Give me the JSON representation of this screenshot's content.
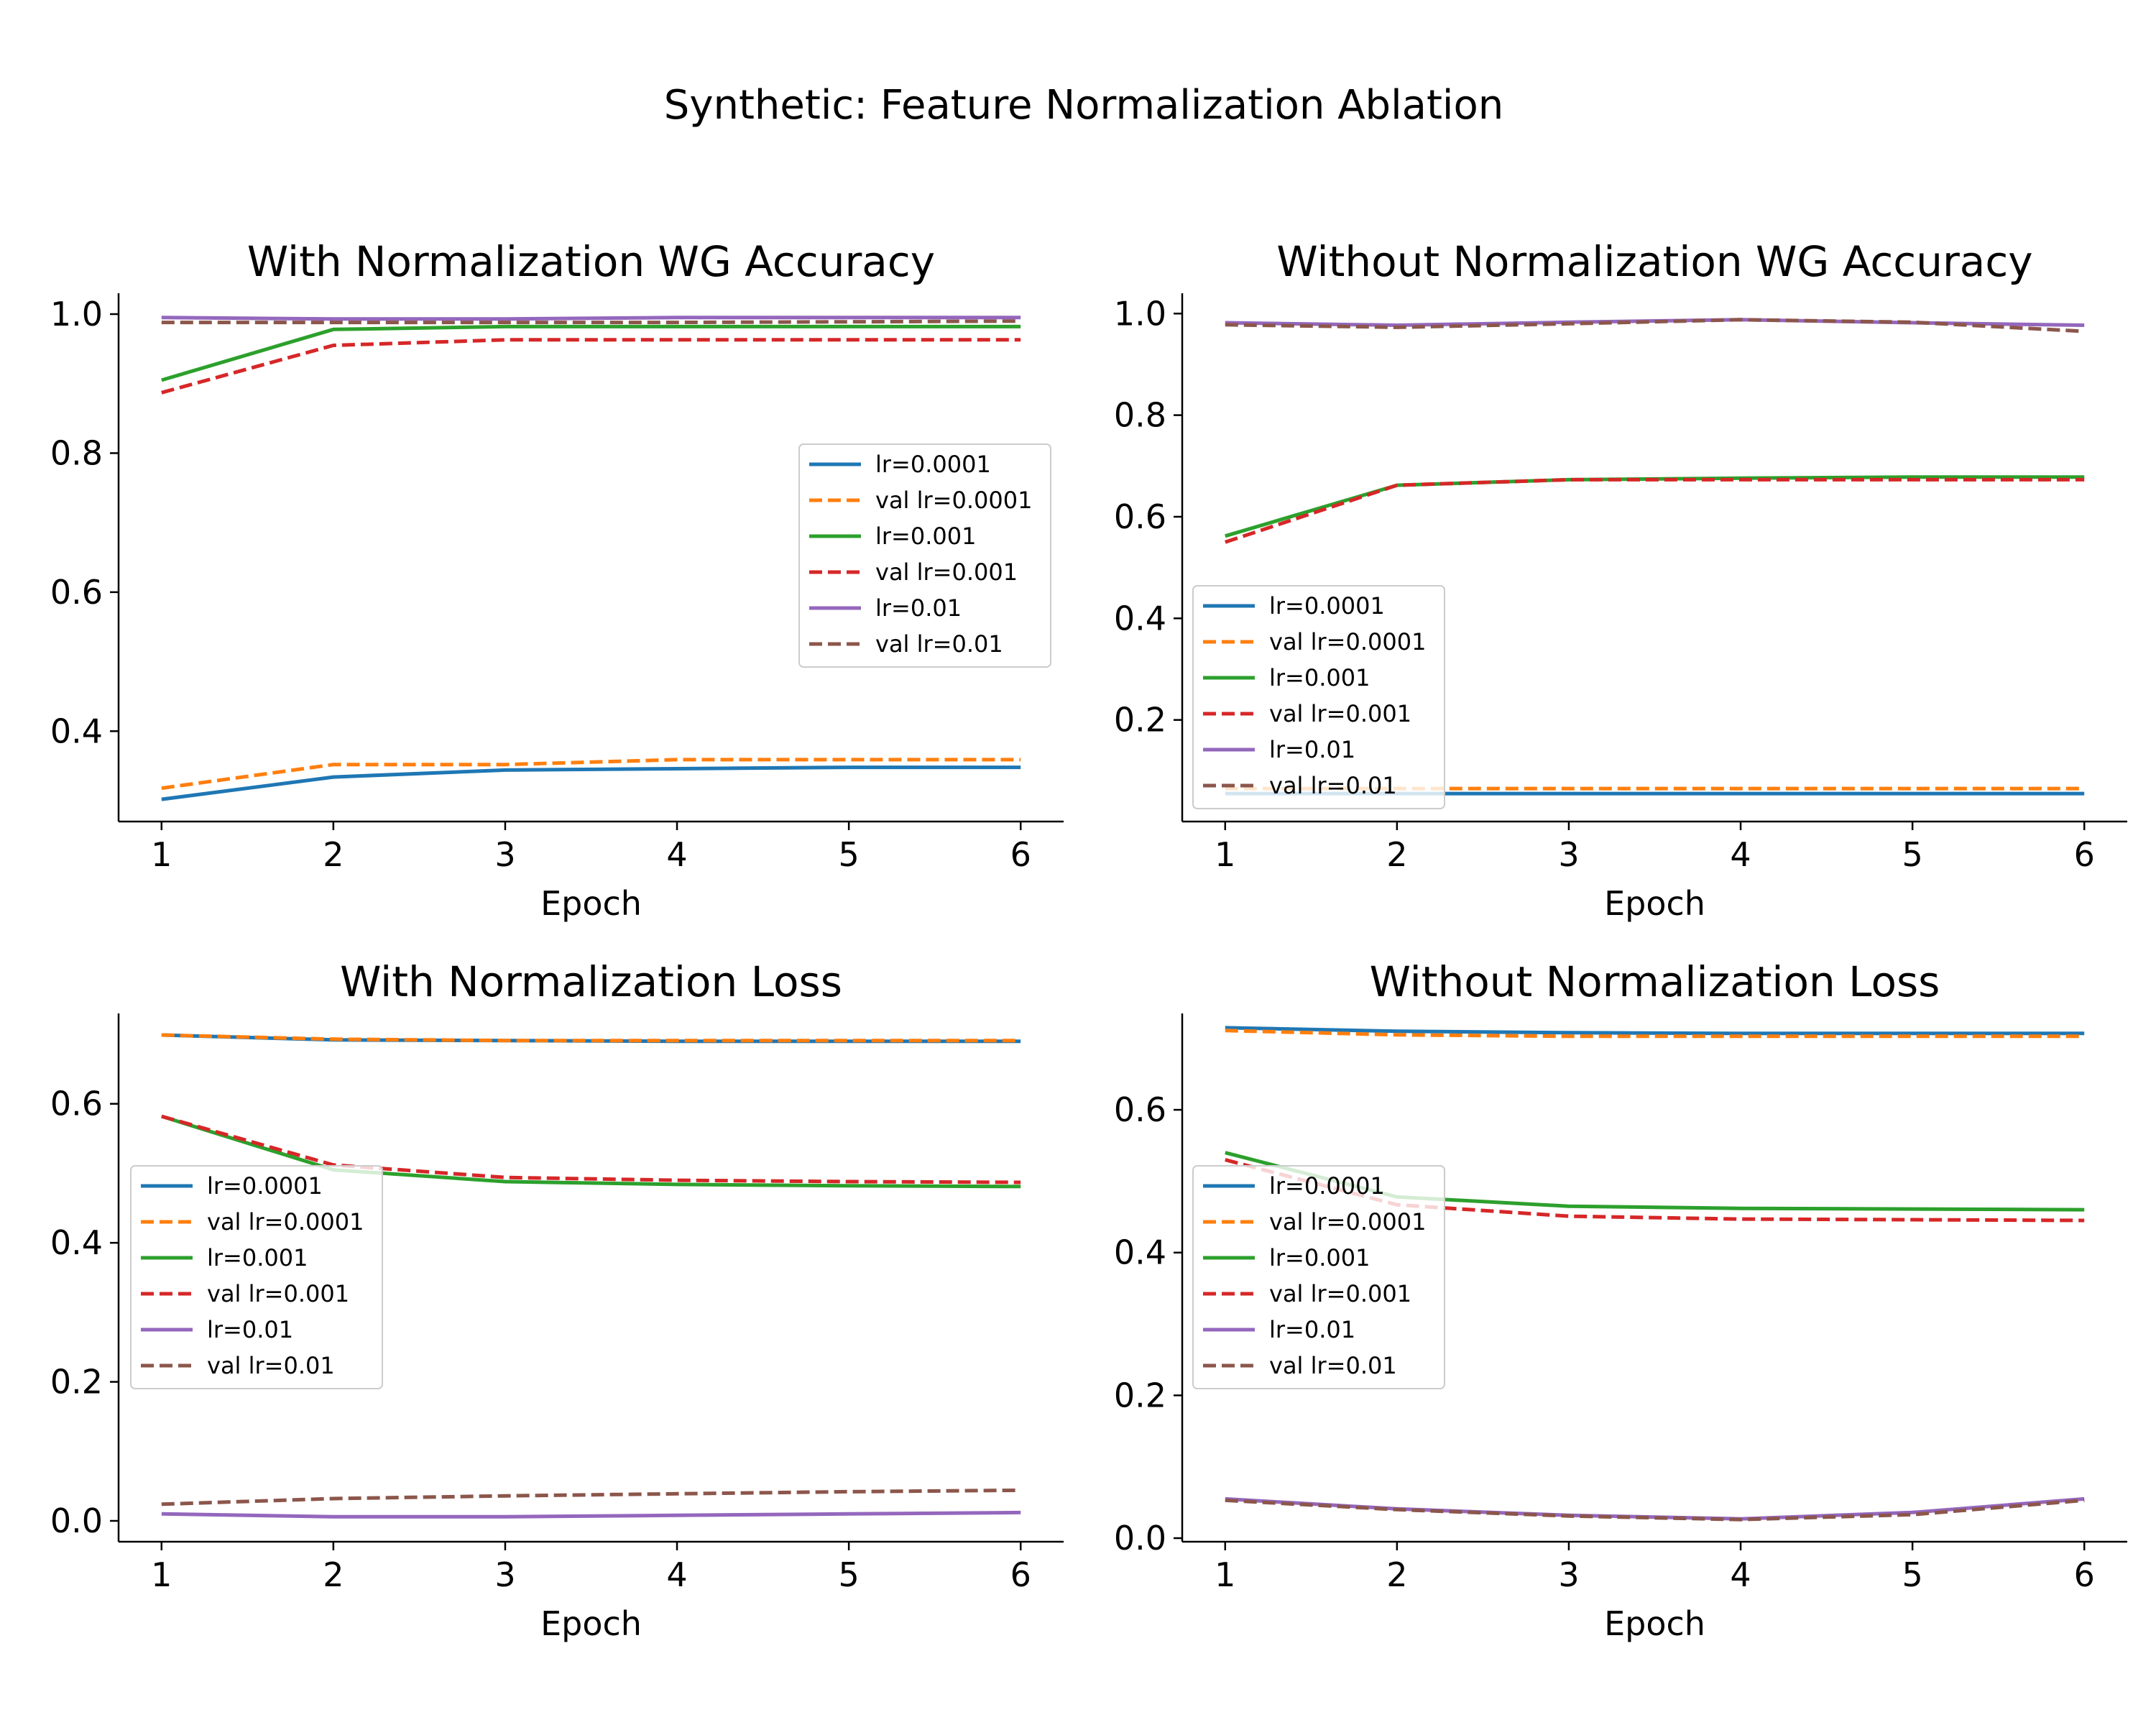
{
  "figure": {
    "title": "Synthetic: Feature Normalization Ablation"
  },
  "chart_data": [
    {
      "type": "line",
      "title": "With Normalization WG Accuracy",
      "xlabel": "Epoch",
      "ylabel": "",
      "x": [
        1,
        2,
        3,
        4,
        5,
        6
      ],
      "xlim": [
        0.75,
        6.25
      ],
      "ylim": [
        0.27,
        1.03
      ],
      "xticks": [
        1,
        2,
        3,
        4,
        5,
        6
      ],
      "yticks": [
        0.4,
        0.6,
        0.8,
        1.0
      ],
      "tick_decimals": 1,
      "legend": "center-right",
      "grid": false,
      "series": [
        {
          "name": "lr=0.0001",
          "style": "solid",
          "color": "#1f77b4",
          "values": [
            0.302,
            0.334,
            0.344,
            0.346,
            0.348,
            0.348
          ]
        },
        {
          "name": "val lr=0.0001",
          "style": "dashed",
          "color": "#ff7f0e",
          "values": [
            0.318,
            0.352,
            0.352,
            0.359,
            0.359,
            0.359
          ]
        },
        {
          "name": "lr=0.001",
          "style": "solid",
          "color": "#2ca02c",
          "values": [
            0.905,
            0.978,
            0.982,
            0.982,
            0.982,
            0.982
          ]
        },
        {
          "name": "val lr=0.001",
          "style": "dashed",
          "color": "#d62728",
          "values": [
            0.887,
            0.955,
            0.963,
            0.963,
            0.963,
            0.963
          ]
        },
        {
          "name": "lr=0.01",
          "style": "solid",
          "color": "#9467bd",
          "values": [
            0.995,
            0.993,
            0.993,
            0.995,
            0.995,
            0.995
          ]
        },
        {
          "name": "val lr=0.01",
          "style": "dashed",
          "color": "#8c564b",
          "values": [
            0.988,
            0.988,
            0.988,
            0.988,
            0.989,
            0.99
          ]
        }
      ]
    },
    {
      "type": "line",
      "title": "Without Normalization WG Accuracy",
      "xlabel": "Epoch",
      "ylabel": "",
      "x": [
        1,
        2,
        3,
        4,
        5,
        6
      ],
      "xlim": [
        0.75,
        6.25
      ],
      "ylim": [
        0.0,
        1.04
      ],
      "xticks": [
        1,
        2,
        3,
        4,
        5,
        6
      ],
      "yticks": [
        0.2,
        0.4,
        0.6,
        0.8,
        1.0
      ],
      "tick_decimals": 1,
      "legend": "lower-left",
      "grid": false,
      "series": [
        {
          "name": "lr=0.0001",
          "style": "solid",
          "color": "#1f77b4",
          "values": [
            0.055,
            0.055,
            0.055,
            0.055,
            0.055,
            0.055
          ]
        },
        {
          "name": "val lr=0.0001",
          "style": "dashed",
          "color": "#ff7f0e",
          "values": [
            0.065,
            0.065,
            0.065,
            0.065,
            0.065,
            0.065
          ]
        },
        {
          "name": "lr=0.001",
          "style": "solid",
          "color": "#2ca02c",
          "values": [
            0.562,
            0.662,
            0.673,
            0.676,
            0.678,
            0.678
          ]
        },
        {
          "name": "val lr=0.001",
          "style": "dashed",
          "color": "#d62728",
          "values": [
            0.55,
            0.662,
            0.673,
            0.673,
            0.673,
            0.673
          ]
        },
        {
          "name": "lr=0.01",
          "style": "solid",
          "color": "#9467bd",
          "values": [
            0.982,
            0.977,
            0.983,
            0.988,
            0.982,
            0.977
          ]
        },
        {
          "name": "val lr=0.01",
          "style": "dashed",
          "color": "#8c564b",
          "values": [
            0.978,
            0.973,
            0.98,
            0.988,
            0.983,
            0.965
          ]
        }
      ]
    },
    {
      "type": "line",
      "title": "With Normalization Loss",
      "xlabel": "Epoch",
      "ylabel": "",
      "x": [
        1,
        2,
        3,
        4,
        5,
        6
      ],
      "xlim": [
        0.75,
        6.25
      ],
      "ylim": [
        -0.03,
        0.73
      ],
      "xticks": [
        1,
        2,
        3,
        4,
        5,
        6
      ],
      "yticks": [
        0.0,
        0.2,
        0.4,
        0.6
      ],
      "tick_decimals": 1,
      "legend": "center-left",
      "grid": false,
      "series": [
        {
          "name": "lr=0.0001",
          "style": "solid",
          "color": "#1f77b4",
          "values": [
            0.699,
            0.692,
            0.691,
            0.69,
            0.69,
            0.69
          ]
        },
        {
          "name": "val lr=0.0001",
          "style": "dashed",
          "color": "#ff7f0e",
          "values": [
            0.699,
            0.693,
            0.691,
            0.691,
            0.691,
            0.691
          ]
        },
        {
          "name": "lr=0.001",
          "style": "solid",
          "color": "#2ca02c",
          "values": [
            0.582,
            0.505,
            0.488,
            0.484,
            0.482,
            0.481
          ]
        },
        {
          "name": "val lr=0.001",
          "style": "dashed",
          "color": "#d62728",
          "values": [
            0.582,
            0.512,
            0.494,
            0.49,
            0.488,
            0.487
          ]
        },
        {
          "name": "lr=0.01",
          "style": "solid",
          "color": "#9467bd",
          "values": [
            0.01,
            0.006,
            0.006,
            0.008,
            0.01,
            0.012
          ]
        },
        {
          "name": "val lr=0.01",
          "style": "dashed",
          "color": "#8c564b",
          "values": [
            0.024,
            0.032,
            0.036,
            0.039,
            0.042,
            0.044
          ]
        }
      ]
    },
    {
      "type": "line",
      "title": "Without Normalization Loss",
      "xlabel": "Epoch",
      "ylabel": "",
      "x": [
        1,
        2,
        3,
        4,
        5,
        6
      ],
      "xlim": [
        0.75,
        6.25
      ],
      "ylim": [
        -0.005,
        0.735
      ],
      "xticks": [
        1,
        2,
        3,
        4,
        5,
        6
      ],
      "yticks": [
        0.0,
        0.2,
        0.4,
        0.6
      ],
      "tick_decimals": 1,
      "legend": "center-left",
      "grid": false,
      "series": [
        {
          "name": "lr=0.0001",
          "style": "solid",
          "color": "#1f77b4",
          "values": [
            0.715,
            0.71,
            0.708,
            0.707,
            0.707,
            0.707
          ]
        },
        {
          "name": "val lr=0.0001",
          "style": "dashed",
          "color": "#ff7f0e",
          "values": [
            0.711,
            0.705,
            0.703,
            0.703,
            0.703,
            0.703
          ]
        },
        {
          "name": "lr=0.001",
          "style": "solid",
          "color": "#2ca02c",
          "values": [
            0.54,
            0.478,
            0.465,
            0.462,
            0.461,
            0.46
          ]
        },
        {
          "name": "val lr=0.001",
          "style": "dashed",
          "color": "#d62728",
          "values": [
            0.53,
            0.467,
            0.451,
            0.447,
            0.446,
            0.445
          ]
        },
        {
          "name": "lr=0.01",
          "style": "solid",
          "color": "#9467bd",
          "values": [
            0.055,
            0.041,
            0.032,
            0.027,
            0.036,
            0.055
          ]
        },
        {
          "name": "val lr=0.01",
          "style": "dashed",
          "color": "#8c564b",
          "values": [
            0.053,
            0.04,
            0.031,
            0.026,
            0.033,
            0.053
          ]
        }
      ]
    }
  ]
}
